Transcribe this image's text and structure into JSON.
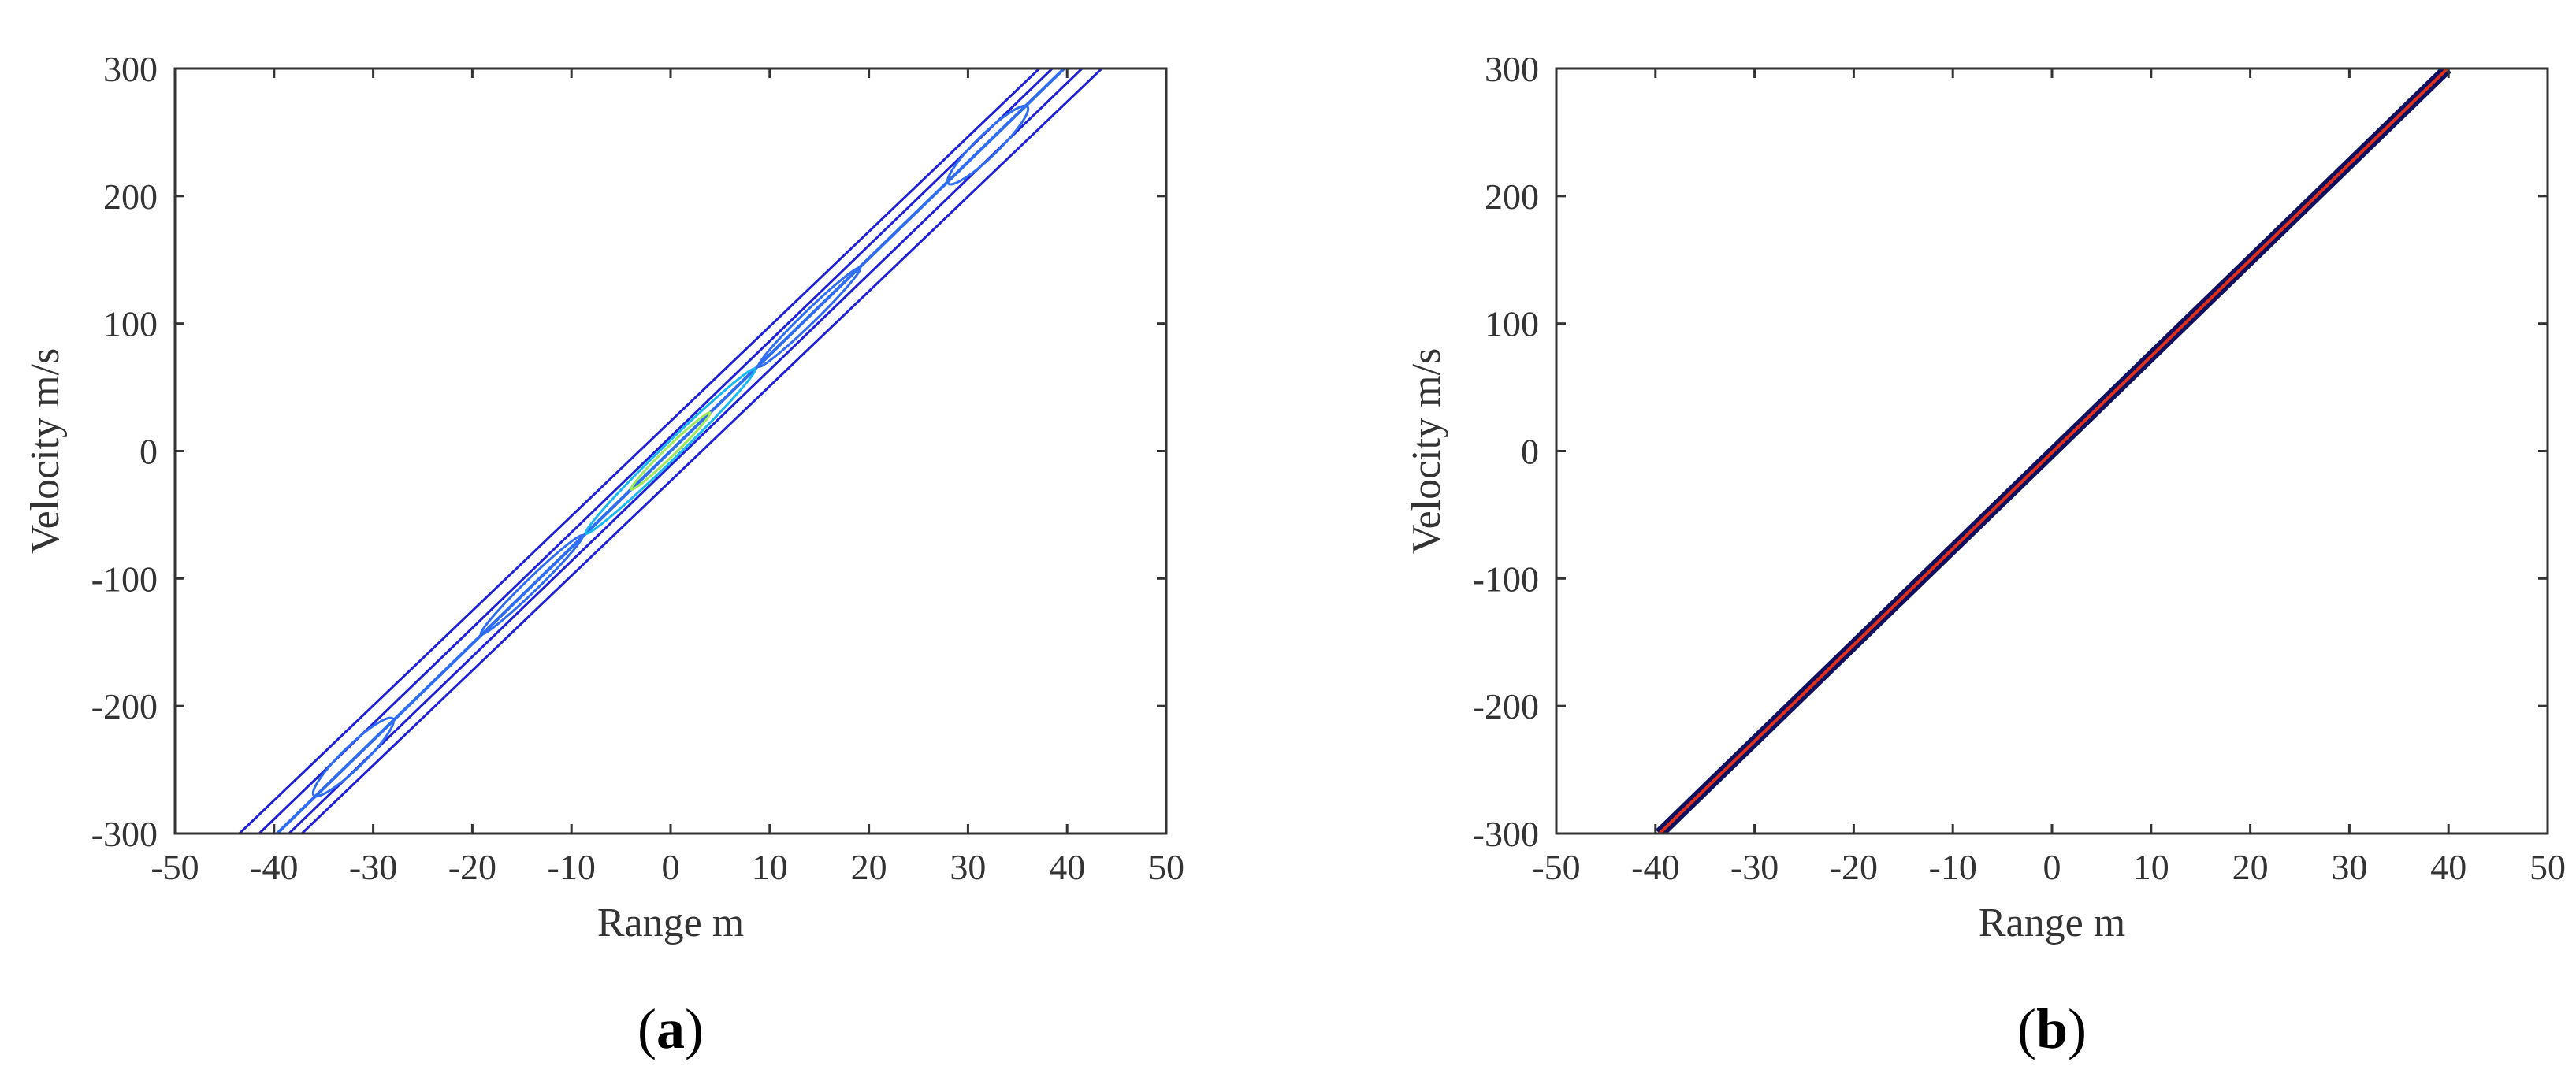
{
  "chart_data": [
    {
      "panel": "(a)",
      "type": "contour",
      "xlabel": "Range m",
      "ylabel": "Velocity m/s",
      "xlim": [
        -50,
        50
      ],
      "ylim": [
        -300,
        300
      ],
      "xticks": [
        -50,
        -40,
        -30,
        -20,
        -10,
        0,
        10,
        20,
        30,
        40,
        50
      ],
      "yticks": [
        -300,
        -200,
        -100,
        0,
        100,
        200,
        300
      ],
      "grid": false,
      "description_series": [
        {
          "role": "ridge-center",
          "x": [
            -39.7,
            39.7
          ],
          "y": [
            -300,
            300
          ]
        },
        {
          "role": "outer-contour-left",
          "x": [
            -43.5,
            37.2
          ],
          "y": [
            -300,
            300
          ]
        },
        {
          "role": "outer-contour-right",
          "x": [
            -37.2,
            43.5
          ],
          "y": [
            -300,
            300
          ]
        },
        {
          "role": "mid-contour-left",
          "x": [
            -41.5,
            38.5
          ],
          "y": [
            -300,
            300
          ]
        },
        {
          "role": "mid-contour-right",
          "x": [
            -38.5,
            41.5
          ],
          "y": [
            -300,
            300
          ]
        }
      ],
      "peak": {
        "x": 0,
        "y": 0
      }
    },
    {
      "panel": "(b)",
      "type": "contour",
      "xlabel": "Range m",
      "ylabel": "Velocity m/s",
      "xlim": [
        -50,
        50
      ],
      "ylim": [
        -300,
        300
      ],
      "xticks": [
        -50,
        -40,
        -30,
        -20,
        -10,
        0,
        10,
        20,
        30,
        40,
        50
      ],
      "yticks": [
        -300,
        -200,
        -100,
        0,
        100,
        200,
        300
      ],
      "grid": false,
      "ridge": {
        "x": [
          -39.6,
          39.9
        ],
        "y": [
          -300,
          300
        ]
      }
    }
  ],
  "colors": {
    "contour_outer": "#1f1fd6",
    "contour_mid": "#2f6df0",
    "contour_inner": "#18b8f0",
    "contour_peak": "#9fe85a",
    "ridge_dark": "#101060",
    "ridge_red": "#e0301a",
    "axis": "#333333"
  }
}
